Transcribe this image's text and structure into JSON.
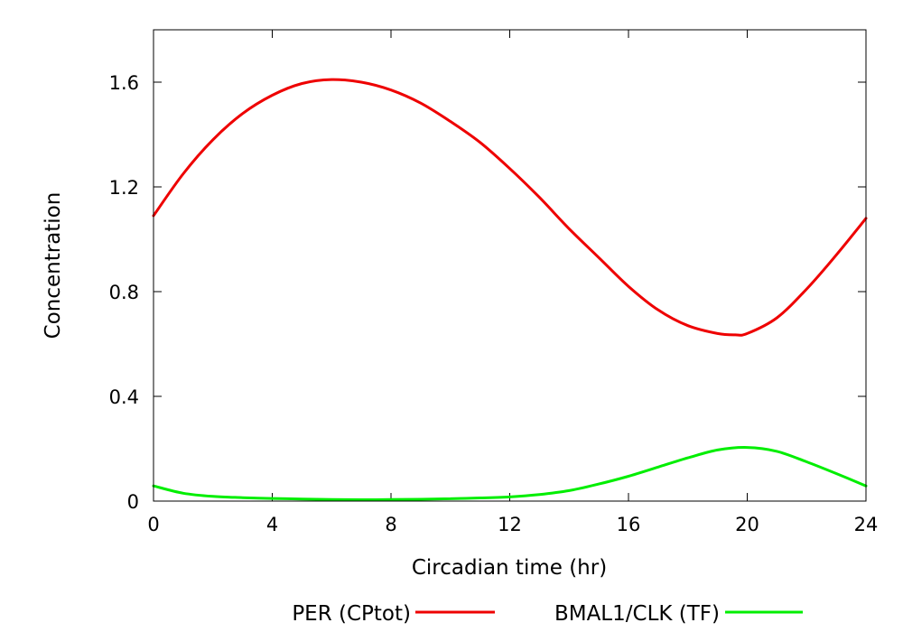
{
  "chart_data": {
    "type": "line",
    "xlabel": "Circadian time (hr)",
    "ylabel": "Concentration",
    "xlim": [
      0,
      24
    ],
    "ylim": [
      0,
      1.8
    ],
    "xticks": [
      "0",
      "4",
      "8",
      "12",
      "16",
      "20",
      "24"
    ],
    "yticks": [
      "0",
      "0.4",
      "0.8",
      "1.2",
      "1.6"
    ],
    "grid": false,
    "legend_position": "bottom",
    "series": [
      {
        "name": "PER (CPtot)",
        "color": "#ee0000",
        "x": [
          0,
          1,
          2,
          3,
          4,
          5,
          6,
          7,
          8,
          9,
          10,
          11,
          12,
          13,
          14,
          15,
          16,
          17,
          18,
          19,
          19.6,
          20,
          21,
          22,
          23,
          24
        ],
        "y": [
          1.09,
          1.25,
          1.38,
          1.48,
          1.55,
          1.595,
          1.61,
          1.6,
          1.57,
          1.52,
          1.45,
          1.37,
          1.27,
          1.16,
          1.04,
          0.93,
          0.82,
          0.73,
          0.67,
          0.64,
          0.635,
          0.64,
          0.7,
          0.81,
          0.94,
          1.08
        ]
      },
      {
        "name": "BMAL1/CLK (TF)",
        "color": "#00ee00",
        "x": [
          0,
          1,
          2,
          3,
          4,
          5,
          6,
          7,
          8,
          9,
          10,
          11,
          12,
          13,
          14,
          15,
          16,
          17,
          18,
          19,
          20,
          21,
          22,
          23,
          24
        ],
        "y": [
          0.058,
          0.03,
          0.018,
          0.013,
          0.01,
          0.008,
          0.006,
          0.005,
          0.006,
          0.007,
          0.009,
          0.012,
          0.016,
          0.025,
          0.04,
          0.065,
          0.095,
          0.13,
          0.165,
          0.195,
          0.205,
          0.19,
          0.15,
          0.105,
          0.058
        ]
      }
    ]
  }
}
